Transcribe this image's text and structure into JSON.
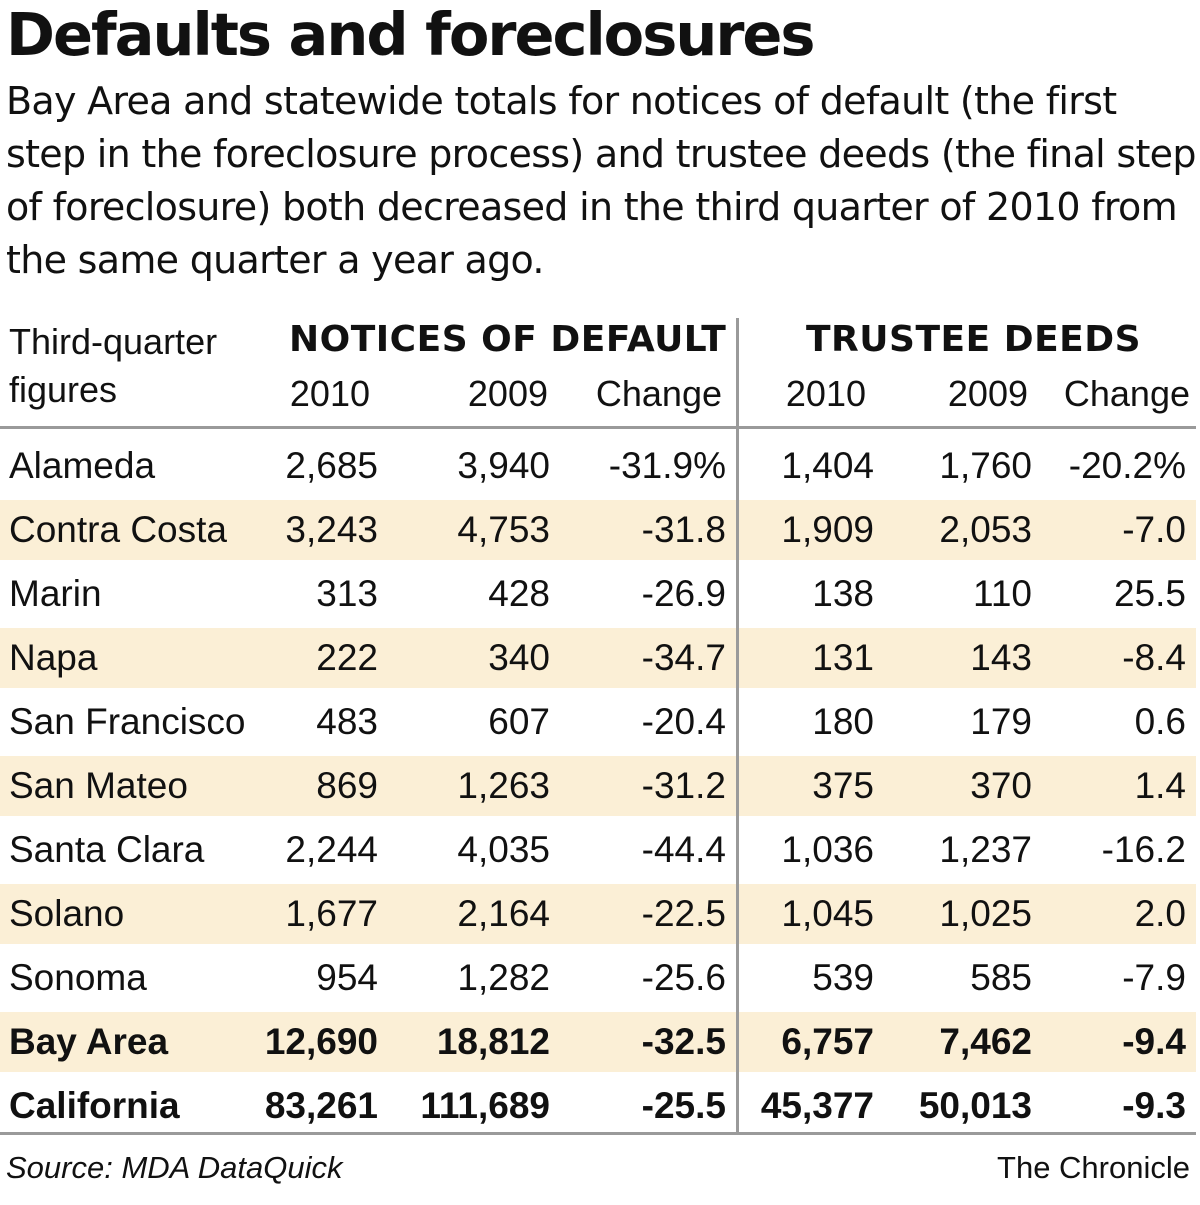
{
  "chart_data": {
    "type": "table",
    "title": "Defaults and foreclosures",
    "subtitle": "Bay Area and statewide totals for notices of default (the first step in the foreclosure process) and trustee deeds (the final step of foreclosure) both decreased in the third quarter of 2010 from the same quarter a year ago.",
    "row_header_label": [
      "Third-quarter",
      "figures"
    ],
    "groups": [
      {
        "title": "NOTICES OF DEFAULT",
        "columns": [
          "2010",
          "2009",
          "Change"
        ]
      },
      {
        "title": "TRUSTEE DEEDS",
        "columns": [
          "2010",
          "2009",
          "Change"
        ]
      }
    ],
    "rows": [
      {
        "name": "Alameda",
        "values": [
          "2,685",
          "3,940",
          "-31.9%",
          "1,404",
          "1,760",
          "-20.2%"
        ]
      },
      {
        "name": "Contra Costa",
        "values": [
          "3,243",
          "4,753",
          "-31.8",
          "1,909",
          "2,053",
          "-7.0"
        ]
      },
      {
        "name": "Marin",
        "values": [
          "313",
          "428",
          "-26.9",
          "138",
          "110",
          "25.5"
        ]
      },
      {
        "name": "Napa",
        "values": [
          "222",
          "340",
          "-34.7",
          "131",
          "143",
          "-8.4"
        ]
      },
      {
        "name": "San Francisco",
        "values": [
          "483",
          "607",
          "-20.4",
          "180",
          "179",
          "0.6"
        ]
      },
      {
        "name": "San Mateo",
        "values": [
          "869",
          "1,263",
          "-31.2",
          "375",
          "370",
          "1.4"
        ]
      },
      {
        "name": "Santa Clara",
        "values": [
          "2,244",
          "4,035",
          "-44.4",
          "1,036",
          "1,237",
          "-16.2"
        ]
      },
      {
        "name": "Solano",
        "values": [
          "1,677",
          "2,164",
          "-22.5",
          "1,045",
          "1,025",
          "2.0"
        ]
      },
      {
        "name": "Sonoma",
        "values": [
          "954",
          "1,282",
          "-25.6",
          "539",
          "585",
          "-7.9"
        ]
      },
      {
        "name": "Bay Area",
        "values": [
          "12,690",
          "18,812",
          "-32.5",
          "6,757",
          "7,462",
          "-9.4"
        ]
      },
      {
        "name": "California",
        "values": [
          "83,261",
          "111,689",
          "-25.5",
          "45,377",
          "50,013",
          "-9.3"
        ]
      }
    ],
    "source": "Source: MDA DataQuick",
    "credit": "The Chronicle"
  },
  "colors": {
    "row_shade": "#fbefd6",
    "rule": "#9a9a9a",
    "text": "#111111"
  }
}
